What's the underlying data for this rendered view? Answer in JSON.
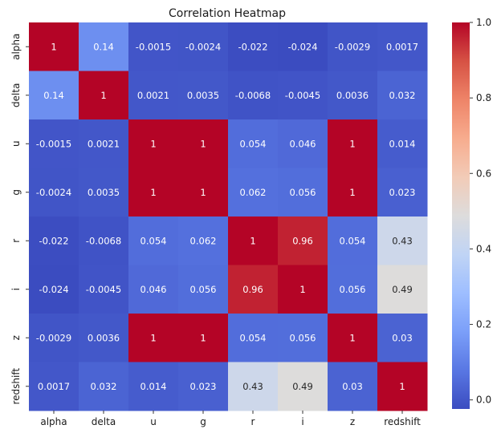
{
  "chart_data": {
    "type": "heatmap",
    "title": "Correlation Heatmap",
    "xlabel": "",
    "ylabel": "",
    "labels": [
      "alpha",
      "delta",
      "u",
      "g",
      "r",
      "i",
      "z",
      "redshift"
    ],
    "matrix": [
      [
        1,
        0.14,
        -0.0015,
        -0.0024,
        -0.022,
        -0.024,
        -0.0029,
        0.0017
      ],
      [
        0.14,
        1,
        0.0021,
        0.0035,
        -0.0068,
        -0.0045,
        0.0036,
        0.032
      ],
      [
        -0.0015,
        0.0021,
        1,
        1,
        0.054,
        0.046,
        1,
        0.014
      ],
      [
        -0.0024,
        0.0035,
        1,
        1,
        0.062,
        0.056,
        1,
        0.023
      ],
      [
        -0.022,
        -0.0068,
        0.054,
        0.062,
        1,
        0.96,
        0.054,
        0.43
      ],
      [
        -0.024,
        -0.0045,
        0.046,
        0.056,
        0.96,
        1,
        0.056,
        0.49
      ],
      [
        -0.0029,
        0.0036,
        1,
        1,
        0.054,
        0.056,
        1,
        0.03
      ],
      [
        0.0017,
        0.032,
        0.014,
        0.023,
        0.43,
        0.49,
        0.03,
        1
      ]
    ],
    "annotations": [
      [
        "1",
        "0.14",
        "-0.0015",
        "-0.0024",
        "-0.022",
        "-0.024",
        "-0.0029",
        "0.0017"
      ],
      [
        "0.14",
        "1",
        "0.0021",
        "0.0035",
        "-0.0068",
        "-0.0045",
        "0.0036",
        "0.032"
      ],
      [
        "-0.0015",
        "0.0021",
        "1",
        "1",
        "0.054",
        "0.046",
        "1",
        "0.014"
      ],
      [
        "-0.0024",
        "0.0035",
        "1",
        "1",
        "0.062",
        "0.056",
        "1",
        "0.023"
      ],
      [
        "-0.022",
        "-0.0068",
        "0.054",
        "0.062",
        "1",
        "0.96",
        "0.054",
        "0.43"
      ],
      [
        "-0.024",
        "-0.0045",
        "0.046",
        "0.056",
        "0.96",
        "1",
        "0.056",
        "0.49"
      ],
      [
        "-0.0029",
        "0.0036",
        "1",
        "1",
        "0.054",
        "0.056",
        "1",
        "0.03"
      ],
      [
        "0.0017",
        "0.032",
        "0.014",
        "0.023",
        "0.43",
        "0.49",
        "0.03",
        "1"
      ]
    ],
    "colormap": "coolwarm",
    "colormap_stops": [
      "#3b4cc0",
      "#5977e3",
      "#7b9ff9",
      "#9ebeff",
      "#c0d4f5",
      "#dddcdc",
      "#f2cbb7",
      "#f7ac8e",
      "#ee8468",
      "#d65244",
      "#b40426"
    ],
    "color_range": [
      -0.024,
      1
    ],
    "colorbar": {
      "ticks": [
        0.0,
        0.2,
        0.4,
        0.6,
        0.8,
        1.0
      ],
      "tick_labels": [
        "0.0",
        "0.2",
        "0.4",
        "0.6",
        "0.8",
        "1.0"
      ]
    },
    "grid": false,
    "legend": "colorbar-right"
  }
}
